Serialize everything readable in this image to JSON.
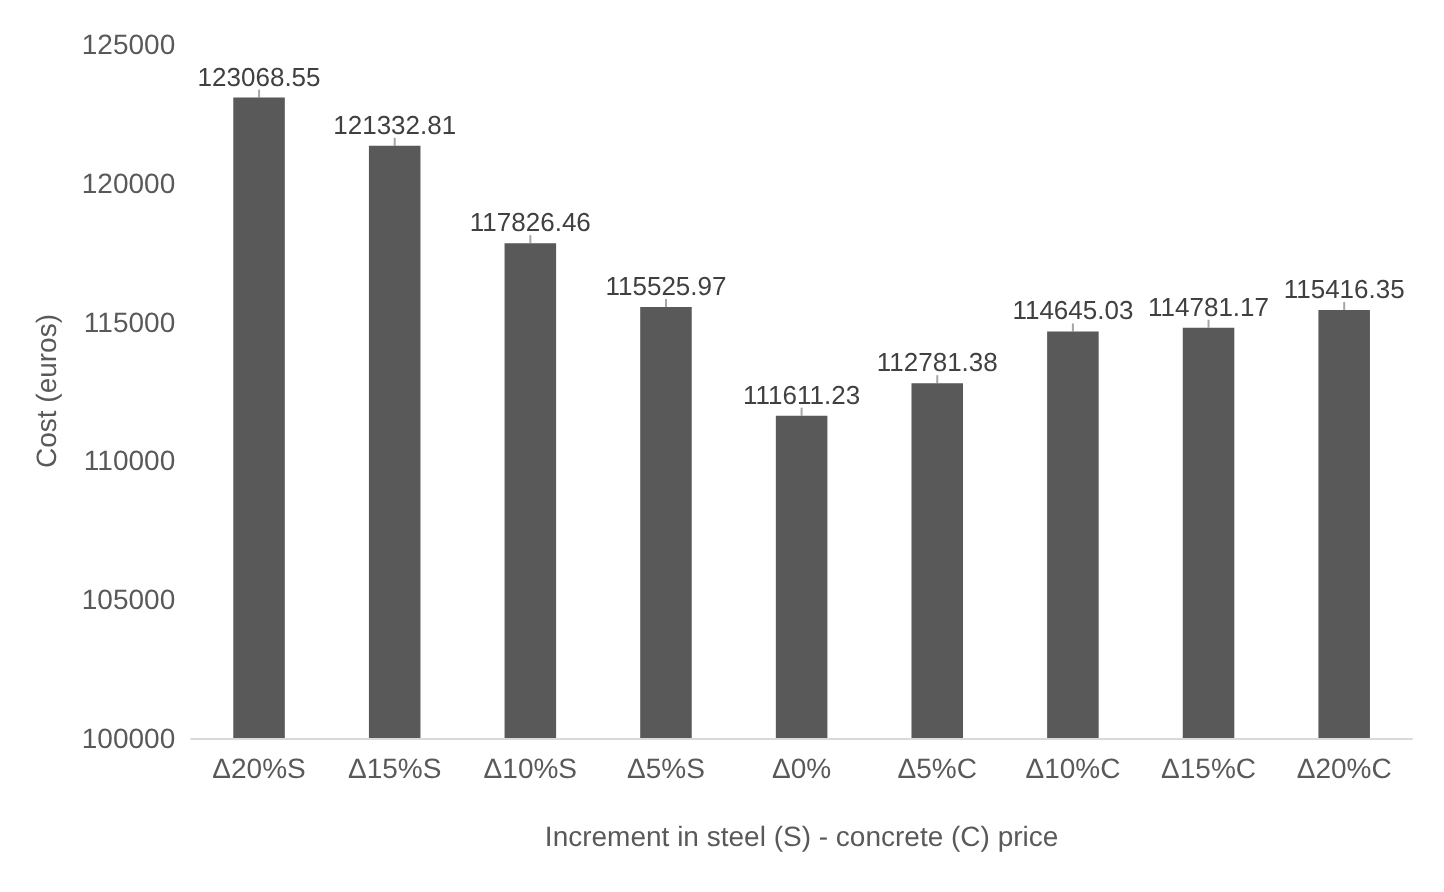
{
  "chart_data": {
    "type": "bar",
    "xlabel": "Increment in steel (S) - concrete (C) price",
    "ylabel": "Cost (euros)",
    "categories": [
      "Δ20%S",
      "Δ15%S",
      "Δ10%S",
      "Δ5%S",
      "Δ0%",
      "Δ5%C",
      "Δ10%C",
      "Δ15%C",
      "Δ20%C"
    ],
    "values": [
      123068.55,
      121332.81,
      117826.46,
      115525.97,
      111611.23,
      112781.38,
      114645.03,
      114781.17,
      115416.35
    ],
    "color": "#595959",
    "ylim": [
      100000,
      125000
    ],
    "yticks": [
      100000,
      105000,
      110000,
      115000,
      120000,
      125000
    ],
    "grid": false,
    "data_labels": true
  }
}
